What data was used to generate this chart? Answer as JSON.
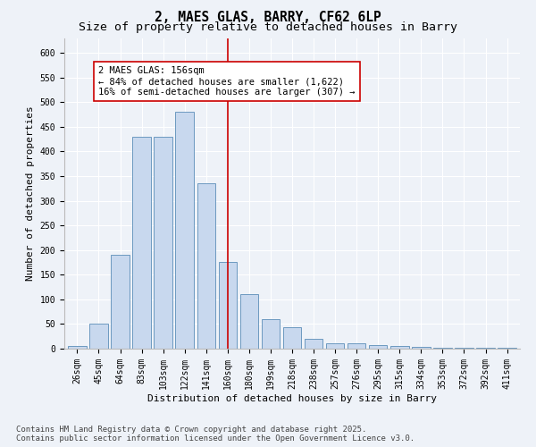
{
  "title_line1": "2, MAES GLAS, BARRY, CF62 6LP",
  "title_line2": "Size of property relative to detached houses in Barry",
  "xlabel": "Distribution of detached houses by size in Barry",
  "ylabel": "Number of detached properties",
  "bar_labels": [
    "26sqm",
    "45sqm",
    "64sqm",
    "83sqm",
    "103sqm",
    "122sqm",
    "141sqm",
    "160sqm",
    "180sqm",
    "199sqm",
    "218sqm",
    "238sqm",
    "257sqm",
    "276sqm",
    "295sqm",
    "315sqm",
    "334sqm",
    "353sqm",
    "372sqm",
    "392sqm",
    "411sqm"
  ],
  "bar_values": [
    5,
    50,
    190,
    430,
    430,
    480,
    335,
    175,
    110,
    60,
    43,
    20,
    10,
    10,
    8,
    5,
    3,
    2,
    2,
    1,
    1
  ],
  "bar_color": "#c8d8ee",
  "bar_edgecolor": "#5b8db8",
  "vline_x_index": 7,
  "vline_color": "#cc0000",
  "annotation_text": "2 MAES GLAS: 156sqm\n← 84% of detached houses are smaller (1,622)\n16% of semi-detached houses are larger (307) →",
  "annotation_box_edgecolor": "#cc0000",
  "annotation_box_facecolor": "#ffffff",
  "background_color": "#eef2f8",
  "grid_color": "#ffffff",
  "ylim": [
    0,
    630
  ],
  "yticks": [
    0,
    50,
    100,
    150,
    200,
    250,
    300,
    350,
    400,
    450,
    500,
    550,
    600
  ],
  "footer_text": "Contains HM Land Registry data © Crown copyright and database right 2025.\nContains public sector information licensed under the Open Government Licence v3.0.",
  "title_fontsize": 10.5,
  "subtitle_fontsize": 9.5,
  "axis_label_fontsize": 8,
  "tick_fontsize": 7,
  "annotation_fontsize": 7.5,
  "footer_fontsize": 6.5
}
